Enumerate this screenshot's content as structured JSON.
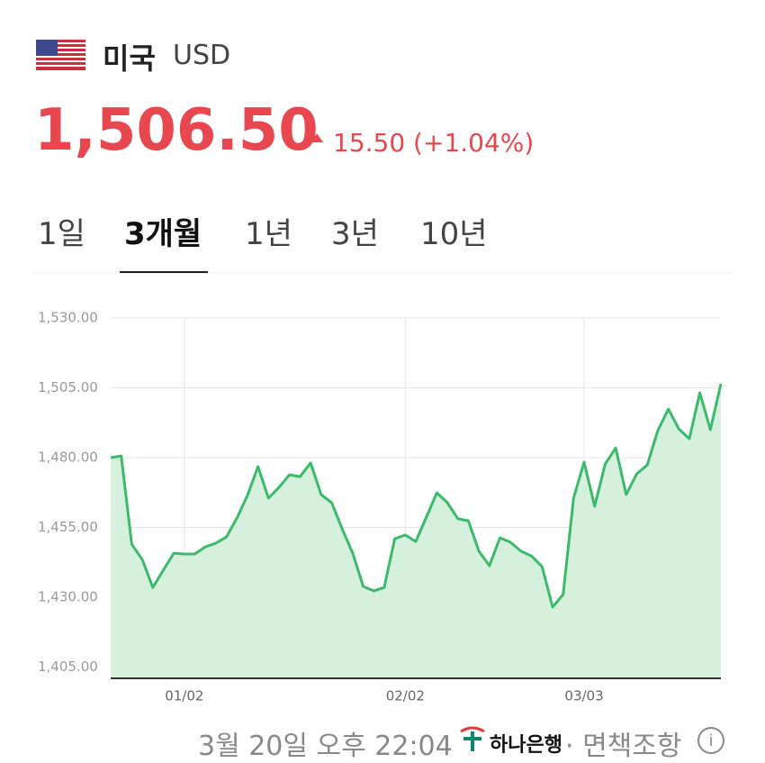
{
  "header": {
    "country": "미국",
    "currency": "USD",
    "price": "1,506.50",
    "change": "15.50 (+1.04%)"
  },
  "tabs": [
    "1일",
    "3개월",
    "1년",
    "3년",
    "10년"
  ],
  "footer": {
    "timestamp": "3월 20일 오후 22:04",
    "bank": "하나은행",
    "disclaimer": "· 면책조항"
  },
  "chart_data": {
    "type": "line",
    "color": "#3cb96a",
    "fill": "#d6f0de",
    "categories": [
      null,
      null,
      null,
      null,
      null,
      null,
      null,
      "01/02",
      null,
      null,
      null,
      null,
      null,
      null,
      null,
      null,
      null,
      null,
      null,
      null,
      null,
      null,
      null,
      null,
      null,
      null,
      null,
      null,
      "02/02",
      null,
      null,
      null,
      null,
      null,
      null,
      null,
      null,
      null,
      null,
      null,
      null,
      null,
      null,
      null,
      null,
      "03/03",
      null,
      null,
      null,
      null,
      null,
      null,
      null,
      null,
      null,
      null,
      null,
      null,
      null
    ],
    "values": [
      1480,
      1480.6,
      1449,
      1443.5,
      1433.5,
      1439.7,
      1445.8,
      1445.5,
      1445.5,
      1448.1,
      1449.4,
      1451.6,
      1458.4,
      1466.5,
      1476.8,
      1465.5,
      1469.4,
      1473.9,
      1473.2,
      1478.1,
      1466.8,
      1463.9,
      1454.5,
      1445.8,
      1433.9,
      1432.3,
      1433.5,
      1451,
      1452.3,
      1450,
      1458.7,
      1467.4,
      1463.9,
      1458.1,
      1457.4,
      1446.5,
      1441.3,
      1451.3,
      1449.7,
      1446.5,
      1444.8,
      1441,
      1426.5,
      1431,
      1465.5,
      1478.4,
      1462.6,
      1477.7,
      1483.5,
      1466.8,
      1474.2,
      1477.4,
      1489.7,
      1497.4,
      1490.3,
      1486.8,
      1503.2,
      1490,
      1506.5
    ],
    "ylim": [
      1401,
      1530
    ],
    "yticks": [
      {
        "value": 1405,
        "label": "1,405.00"
      },
      {
        "value": 1430,
        "label": "1,430.00"
      },
      {
        "value": 1455,
        "label": "1,455.00"
      },
      {
        "value": 1480,
        "label": "1,480.00"
      },
      {
        "value": 1505,
        "label": "1,505.00"
      },
      {
        "value": 1530,
        "label": "1,530.00"
      }
    ],
    "grid": true
  }
}
